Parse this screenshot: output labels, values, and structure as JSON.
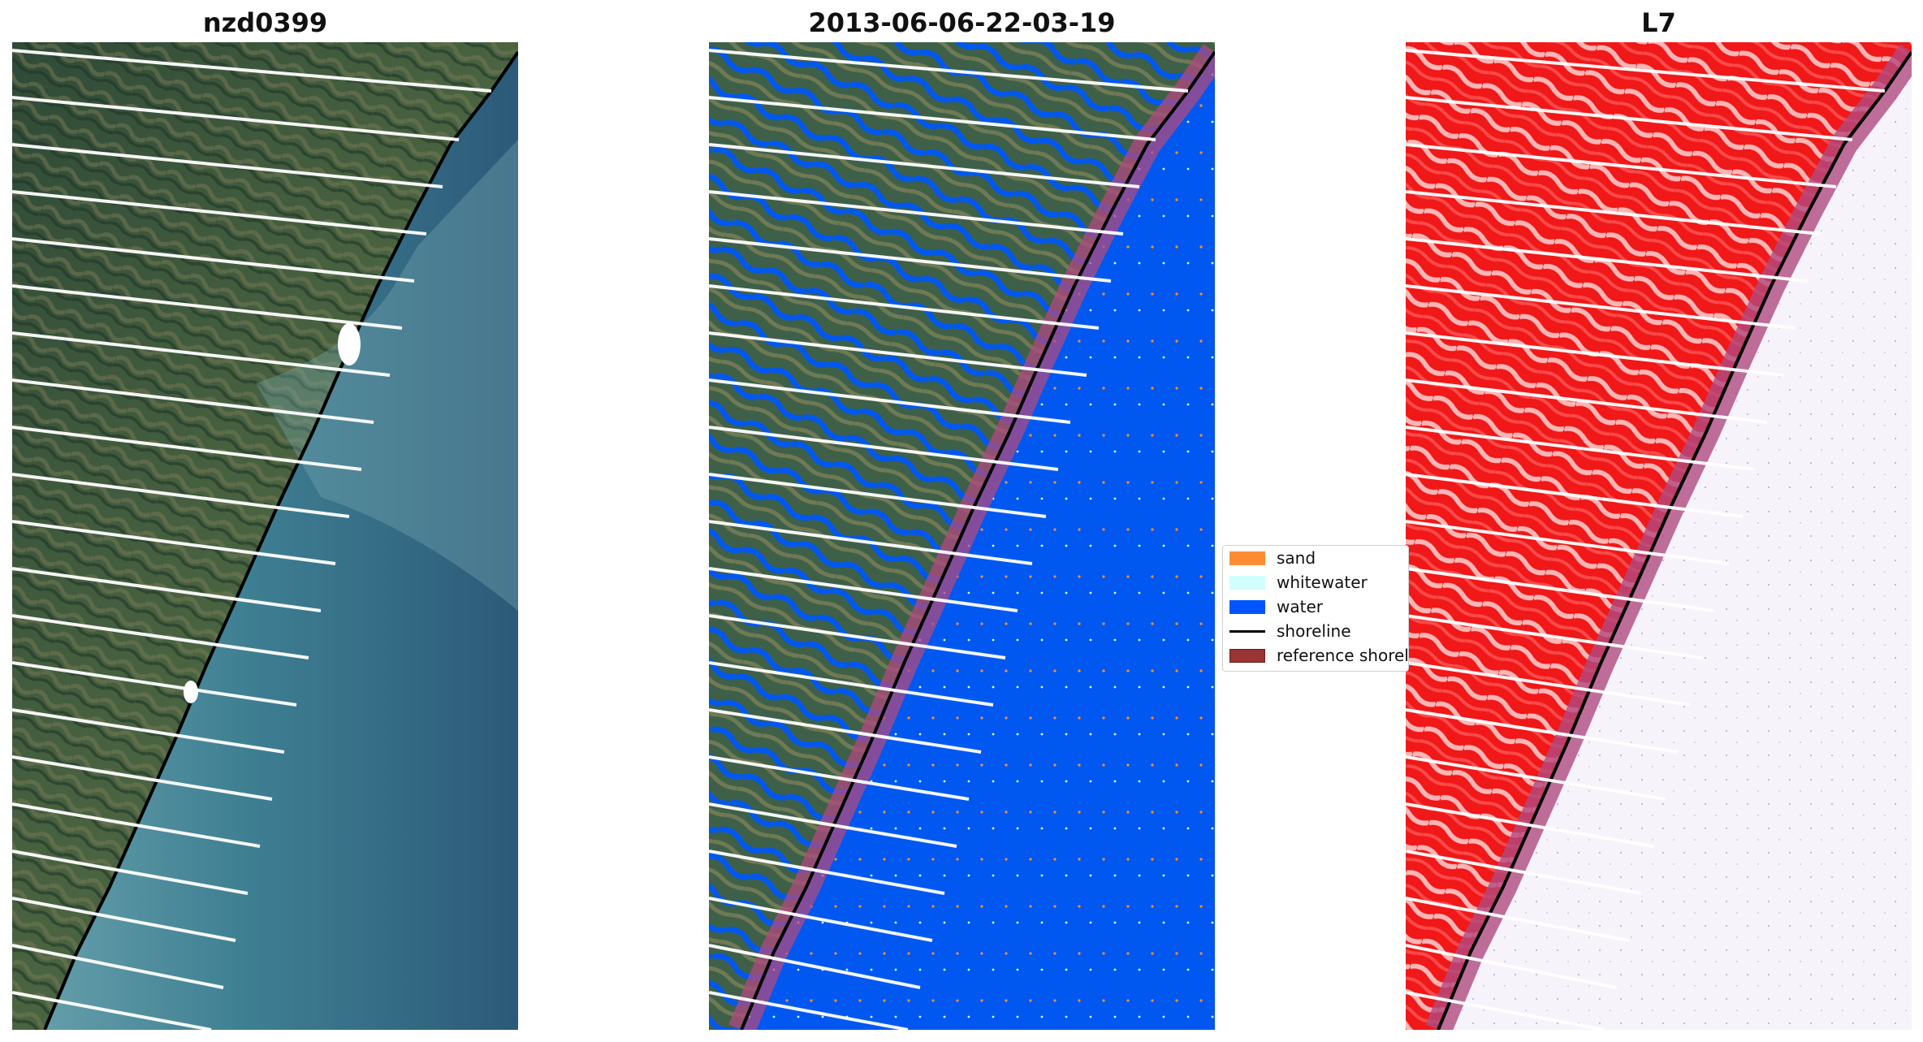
{
  "panels": [
    {
      "title": "nzd0399"
    },
    {
      "title": "2013-06-06-22-03-19"
    },
    {
      "title": "L7"
    }
  ],
  "legend": {
    "items": [
      {
        "label": "sand",
        "color": "#ff8c33"
      },
      {
        "label": "whitewater",
        "color": "#d0ffff"
      },
      {
        "label": "water",
        "color": "#0055ff"
      },
      {
        "label": "shoreline",
        "color": "#000000"
      },
      {
        "label": "reference shoreline",
        "color": "#9b3434"
      }
    ]
  },
  "colors": {
    "land": "#3d5b3c",
    "sea_rgb": "#3d7a92",
    "classified_water": "#0058f0",
    "ndwi_land": "#f01818",
    "ndwi_water": "#f6f3fa",
    "buffer": "#b04a80"
  }
}
